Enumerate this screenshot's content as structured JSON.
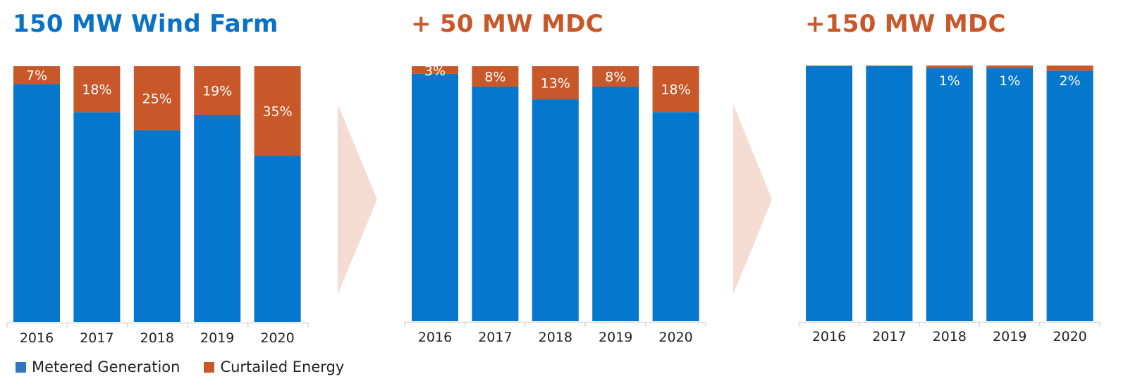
{
  "colors": {
    "metered": "#0577CC",
    "curtailed": "#C8572A",
    "title_blue": "#0A72C6",
    "title_orange": "#C8572A",
    "arrow": "#F5DCD2",
    "axis": "#D9D9D9",
    "label_text": "#ffffff",
    "tick_text": "#222222"
  },
  "legend": [
    {
      "name": "Metered Generation",
      "color": "#2E78C2"
    },
    {
      "name": "Curtailed Energy",
      "color": "#C8572A"
    }
  ],
  "chart_data": [
    {
      "type": "bar",
      "stacked": true,
      "normalized": true,
      "title": "150 MW Wind Farm",
      "categories": [
        "2016",
        "2017",
        "2018",
        "2019",
        "2020"
      ],
      "series": [
        {
          "name": "Metered Generation",
          "values": [
            93,
            82,
            75,
            81,
            65
          ]
        },
        {
          "name": "Curtailed Energy",
          "values": [
            7,
            18,
            25,
            19,
            35
          ]
        }
      ],
      "data_labels": [
        "7%",
        "18%",
        "25%",
        "19%",
        "35%"
      ],
      "ylim": [
        0,
        100
      ],
      "unit": "%",
      "grid": false,
      "legend": "bottom-left"
    },
    {
      "type": "bar",
      "stacked": true,
      "normalized": true,
      "title": "+ 50 MW MDC",
      "categories": [
        "2016",
        "2017",
        "2018",
        "2019",
        "2020"
      ],
      "series": [
        {
          "name": "Metered Generation",
          "values": [
            97,
            92,
            87,
            92,
            82
          ]
        },
        {
          "name": "Curtailed Energy",
          "values": [
            3,
            8,
            13,
            8,
            18
          ]
        }
      ],
      "data_labels": [
        "3%",
        "8%",
        "13%",
        "8%",
        "18%"
      ],
      "ylim": [
        0,
        100
      ],
      "unit": "%",
      "grid": false
    },
    {
      "type": "bar",
      "stacked": true,
      "normalized": true,
      "title": "+150 MW MDC",
      "categories": [
        "2016",
        "2017",
        "2018",
        "2019",
        "2020"
      ],
      "series": [
        {
          "name": "Metered Generation",
          "values": [
            99.8,
            99.8,
            99,
            99,
            98
          ]
        },
        {
          "name": "Curtailed Energy",
          "values": [
            0.2,
            0.2,
            1,
            1,
            2
          ]
        }
      ],
      "data_labels": [
        "",
        "",
        "1%",
        "1%",
        "2%"
      ],
      "ylim": [
        0,
        100
      ],
      "unit": "%",
      "grid": false
    }
  ]
}
